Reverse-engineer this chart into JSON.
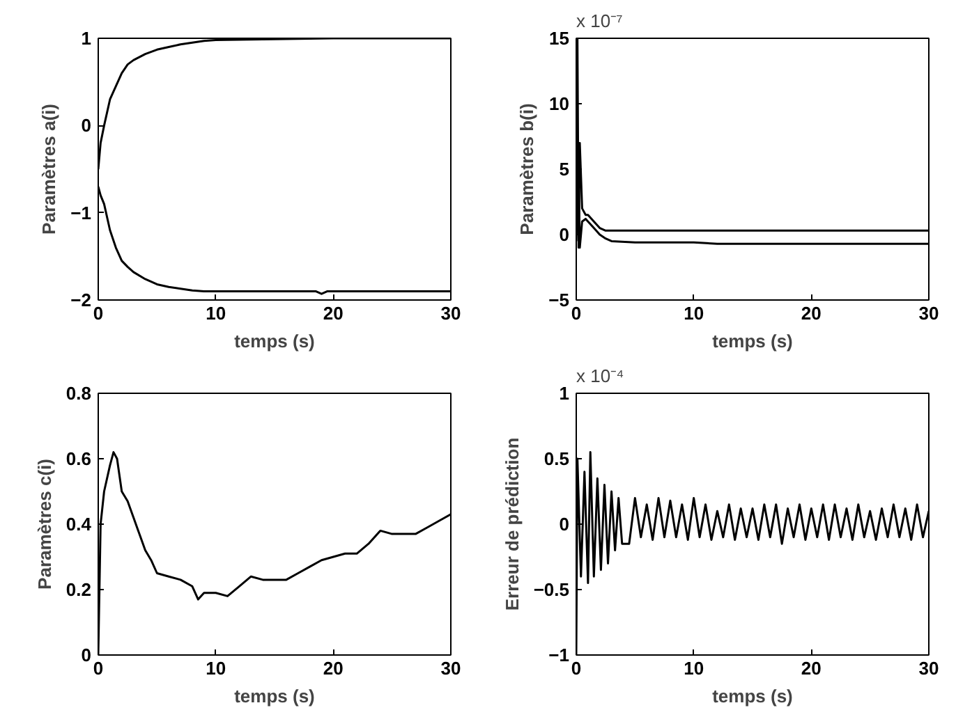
{
  "chart_data": [
    {
      "type": "line",
      "xlabel": "temps (s)",
      "ylabel": "Paramètres a(i)",
      "xlim": [
        0,
        30
      ],
      "ylim": [
        -2,
        1
      ],
      "xticks": [
        0,
        10,
        20,
        30
      ],
      "yticks": [
        -2,
        -1,
        0,
        1
      ],
      "grid": false,
      "series": [
        {
          "color": "#000000",
          "x": [
            0,
            0.2,
            0.5,
            1,
            1.5,
            2,
            2.5,
            3,
            4,
            5,
            6,
            7,
            8,
            9,
            10,
            15,
            20,
            25,
            30
          ],
          "values": [
            -0.5,
            -0.2,
            0,
            0.3,
            0.45,
            0.6,
            0.7,
            0.75,
            0.82,
            0.87,
            0.9,
            0.93,
            0.95,
            0.97,
            0.98,
            0.99,
            1,
            1,
            1
          ]
        },
        {
          "color": "#000000",
          "x": [
            0,
            0.2,
            0.5,
            1,
            1.5,
            2,
            2.5,
            3,
            4,
            5,
            6,
            7,
            8,
            9,
            10,
            15,
            18.5,
            19,
            19.5,
            25,
            30
          ],
          "values": [
            -0.7,
            -0.8,
            -0.9,
            -1.2,
            -1.4,
            -1.55,
            -1.62,
            -1.68,
            -1.76,
            -1.82,
            -1.85,
            -1.87,
            -1.89,
            -1.9,
            -1.9,
            -1.9,
            -1.9,
            -1.93,
            -1.9,
            -1.9,
            -1.9
          ]
        }
      ]
    },
    {
      "type": "line",
      "xlabel": "temps (s)",
      "ylabel": "Paramètres b(i)",
      "annotations": [
        "x 10⁻⁷"
      ],
      "xlim": [
        0,
        30
      ],
      "ylim": [
        -5,
        15
      ],
      "xticks": [
        0,
        10,
        20,
        30
      ],
      "yticks": [
        -5,
        0,
        5,
        10,
        15
      ],
      "grid": false,
      "series": [
        {
          "color": "#000000",
          "x": [
            0,
            0.1,
            0.2,
            0.3,
            0.5,
            0.8,
            1,
            1.5,
            2,
            2.5,
            3,
            5,
            10,
            20,
            30
          ],
          "values": [
            0,
            15,
            -1,
            7,
            2,
            1.5,
            1.5,
            1,
            0.5,
            0.3,
            0.3,
            0.3,
            0.3,
            0.3,
            0.3
          ]
        },
        {
          "color": "#000000",
          "x": [
            0,
            0.2,
            0.3,
            0.5,
            0.8,
            1,
            1.5,
            2,
            2.5,
            3,
            5,
            10,
            12,
            20,
            30
          ],
          "values": [
            -0.5,
            5,
            -1,
            1,
            1.2,
            1,
            0.5,
            0,
            -0.3,
            -0.5,
            -0.6,
            -0.6,
            -0.7,
            -0.7,
            -0.7
          ]
        }
      ]
    },
    {
      "type": "line",
      "xlabel": "temps (s)",
      "ylabel": "Paramètres c(i)",
      "xlim": [
        0,
        30
      ],
      "ylim": [
        0,
        0.8
      ],
      "xticks": [
        0,
        10,
        20,
        30
      ],
      "yticks": [
        0,
        0.2,
        0.4,
        0.6,
        0.8
      ],
      "grid": false,
      "series": [
        {
          "color": "#000000",
          "x": [
            0,
            0.2,
            0.5,
            1,
            1.3,
            1.6,
            2,
            2.5,
            3,
            3.5,
            4,
            4.5,
            5,
            6,
            7,
            8,
            8.5,
            9,
            10,
            11,
            12,
            13,
            14,
            15,
            16,
            17,
            18,
            19,
            20,
            21,
            22,
            23,
            24,
            25,
            26,
            27,
            28,
            29,
            30
          ],
          "values": [
            0,
            0.4,
            0.5,
            0.58,
            0.62,
            0.6,
            0.5,
            0.47,
            0.42,
            0.37,
            0.32,
            0.29,
            0.25,
            0.24,
            0.23,
            0.21,
            0.17,
            0.19,
            0.19,
            0.18,
            0.21,
            0.24,
            0.23,
            0.23,
            0.23,
            0.25,
            0.27,
            0.29,
            0.3,
            0.31,
            0.31,
            0.34,
            0.38,
            0.37,
            0.37,
            0.37,
            0.39,
            0.41,
            0.43
          ]
        }
      ]
    },
    {
      "type": "line",
      "xlabel": "temps (s)",
      "ylabel": "Erreur de prédiction",
      "annotations": [
        "x 10⁻⁴"
      ],
      "xlim": [
        0,
        30
      ],
      "ylim": [
        -1,
        1
      ],
      "xticks": [
        0,
        10,
        20,
        30
      ],
      "yticks": [
        -1,
        -0.5,
        0,
        0.5,
        1
      ],
      "grid": false,
      "series": [
        {
          "color": "#000000",
          "x": [
            0,
            0.1,
            0.4,
            0.7,
            1.0,
            1.2,
            1.5,
            1.8,
            2.1,
            2.4,
            2.7,
            3.0,
            3.3,
            3.6,
            3.9,
            4.5,
            5,
            5.5,
            6,
            6.5,
            7,
            7.5,
            8,
            8.5,
            9,
            9.5,
            10,
            10.5,
            11,
            11.5,
            12,
            12.5,
            13,
            13.5,
            14,
            14.5,
            15,
            15.5,
            16,
            16.5,
            17,
            17.5,
            18,
            18.5,
            19,
            19.5,
            20,
            20.5,
            21,
            21.5,
            22,
            22.5,
            23,
            23.5,
            24,
            24.5,
            25,
            25.5,
            26,
            26.5,
            27,
            27.5,
            28,
            28.5,
            29,
            29.5,
            30
          ],
          "values": [
            -1,
            0.5,
            -0.4,
            0.4,
            -0.45,
            0.55,
            -0.4,
            0.35,
            -0.35,
            0.3,
            -0.3,
            0.25,
            -0.2,
            0.2,
            -0.15,
            -0.15,
            0.2,
            -0.1,
            0.15,
            -0.12,
            0.2,
            -0.1,
            0.18,
            -0.1,
            0.15,
            -0.12,
            0.2,
            -0.1,
            0.15,
            -0.12,
            0.1,
            -0.1,
            0.15,
            -0.12,
            0.12,
            -0.1,
            0.12,
            -0.12,
            0.15,
            -0.1,
            0.15,
            -0.15,
            0.12,
            -0.1,
            0.15,
            -0.12,
            0.12,
            -0.1,
            0.15,
            -0.12,
            0.15,
            -0.1,
            0.12,
            -0.12,
            0.15,
            -0.1,
            0.1,
            -0.12,
            0.12,
            -0.1,
            0.15,
            -0.1,
            0.12,
            -0.12,
            0.15,
            -0.1,
            0.1
          ]
        }
      ]
    }
  ]
}
